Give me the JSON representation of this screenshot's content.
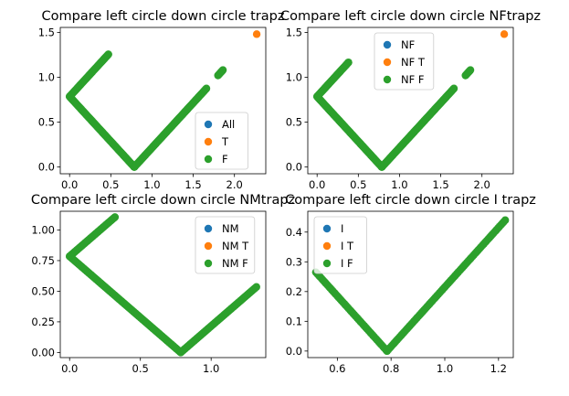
{
  "chart_data": [
    {
      "type": "scatter",
      "title": "Compare left circle down circle trapz",
      "xlim": [
        -0.113,
        2.38
      ],
      "ylim": [
        -0.075,
        1.555
      ],
      "xticks": [
        0.0,
        0.5,
        1.0,
        1.5,
        2.0
      ],
      "xtick_labels": [
        "0.0",
        "0.5",
        "1.0",
        "1.5",
        "2.0"
      ],
      "yticks": [
        0.0,
        0.5,
        1.0,
        1.5
      ],
      "ytick_labels": [
        "0.0",
        "0.5",
        "1.0",
        "1.5"
      ],
      "legend": {
        "placement": "lower-right",
        "entries": [
          "All",
          "T",
          "F"
        ]
      },
      "series": [
        {
          "name": "All",
          "color": "#1f77b4",
          "segments": []
        },
        {
          "name": "T",
          "color": "#ff7f0e",
          "points": [
            [
              2.27,
              1.48
            ]
          ]
        },
        {
          "name": "F",
          "color": "#2ca02c",
          "segments": [
            [
              0.0,
              0.785,
              0.785,
              0.0
            ],
            [
              0.0,
              0.785,
              0.47,
              1.255
            ],
            [
              0.785,
              0.0,
              1.66,
              0.875
            ],
            [
              1.8,
              1.02,
              1.86,
              1.08
            ]
          ],
          "points": [
            [
              0.47,
              1.255
            ]
          ]
        }
      ]
    },
    {
      "type": "scatter",
      "title": "Compare left circle down circle NFtrapz",
      "xlim": [
        -0.113,
        2.38
      ],
      "ylim": [
        -0.075,
        1.555
      ],
      "xticks": [
        0.0,
        0.5,
        1.0,
        1.5,
        2.0
      ],
      "xtick_labels": [
        "0.0",
        "0.5",
        "1.0",
        "1.5",
        "2.0"
      ],
      "yticks": [
        0.0,
        0.5,
        1.0,
        1.5
      ],
      "ytick_labels": [
        "0.0",
        "0.5",
        "1.0",
        "1.5"
      ],
      "legend": {
        "placement": "upper-center",
        "entries": [
          "NF",
          "NF T",
          "NF F"
        ]
      },
      "series": [
        {
          "name": "NF",
          "color": "#1f77b4",
          "segments": []
        },
        {
          "name": "NF T",
          "color": "#ff7f0e",
          "points": [
            [
              2.27,
              1.48
            ]
          ]
        },
        {
          "name": "NF F",
          "color": "#2ca02c",
          "segments": [
            [
              0.0,
              0.785,
              0.785,
              0.0
            ],
            [
              0.0,
              0.785,
              0.38,
              1.165
            ],
            [
              0.785,
              0.0,
              1.66,
              0.875
            ],
            [
              1.8,
              1.02,
              1.86,
              1.08
            ]
          ],
          "points": [
            [
              0.38,
              1.165
            ]
          ]
        }
      ]
    },
    {
      "type": "scatter",
      "title": "Compare left circle down circle NMtrapz",
      "xlim": [
        -0.066,
        1.386
      ],
      "ylim": [
        -0.042,
        1.153
      ],
      "xticks": [
        0.0,
        0.5,
        1.0
      ],
      "xtick_labels": [
        "0.0",
        "0.5",
        "1.0"
      ],
      "yticks": [
        0.0,
        0.25,
        0.5,
        0.75,
        1.0
      ],
      "ytick_labels": [
        "0.00",
        "0.25",
        "0.50",
        "0.75",
        "1.00"
      ],
      "legend": {
        "placement": "upper-right",
        "entries": [
          "NM",
          "NM T",
          "NM F"
        ]
      },
      "series": [
        {
          "name": "NM",
          "color": "#1f77b4",
          "segments": []
        },
        {
          "name": "NM T",
          "color": "#ff7f0e",
          "points": []
        },
        {
          "name": "NM F",
          "color": "#2ca02c",
          "segments": [
            [
              0.0,
              0.785,
              0.785,
              0.0
            ],
            [
              0.0,
              0.785,
              0.32,
              1.105
            ],
            [
              0.785,
              0.0,
              1.32,
              0.535
            ]
          ],
          "points": [
            [
              0.32,
              1.105
            ]
          ]
        }
      ]
    },
    {
      "type": "scatter",
      "title": "Compare left circle down circle I trapz",
      "xlim": [
        0.49,
        1.255
      ],
      "ylim": [
        -0.022,
        0.47
      ],
      "xticks": [
        0.6,
        0.8,
        1.0,
        1.2
      ],
      "xtick_labels": [
        "0.6",
        "0.8",
        "1.0",
        "1.2"
      ],
      "yticks": [
        0.0,
        0.1,
        0.2,
        0.3,
        0.4
      ],
      "ytick_labels": [
        "0.0",
        "0.1",
        "0.2",
        "0.3",
        "0.4"
      ],
      "legend": {
        "placement": "upper-left",
        "entries": [
          "I",
          "I T",
          "I F"
        ]
      },
      "series": [
        {
          "name": "I",
          "color": "#1f77b4",
          "segments": []
        },
        {
          "name": "I T",
          "color": "#ff7f0e",
          "points": [
            [
              0.59,
              0.195
            ]
          ]
        },
        {
          "name": "I F",
          "color": "#2ca02c",
          "segments": [
            [
              0.52,
              0.265,
              0.785,
              0.0
            ],
            [
              0.785,
              0.0,
              1.225,
              0.44
            ]
          ],
          "points": []
        }
      ]
    }
  ]
}
